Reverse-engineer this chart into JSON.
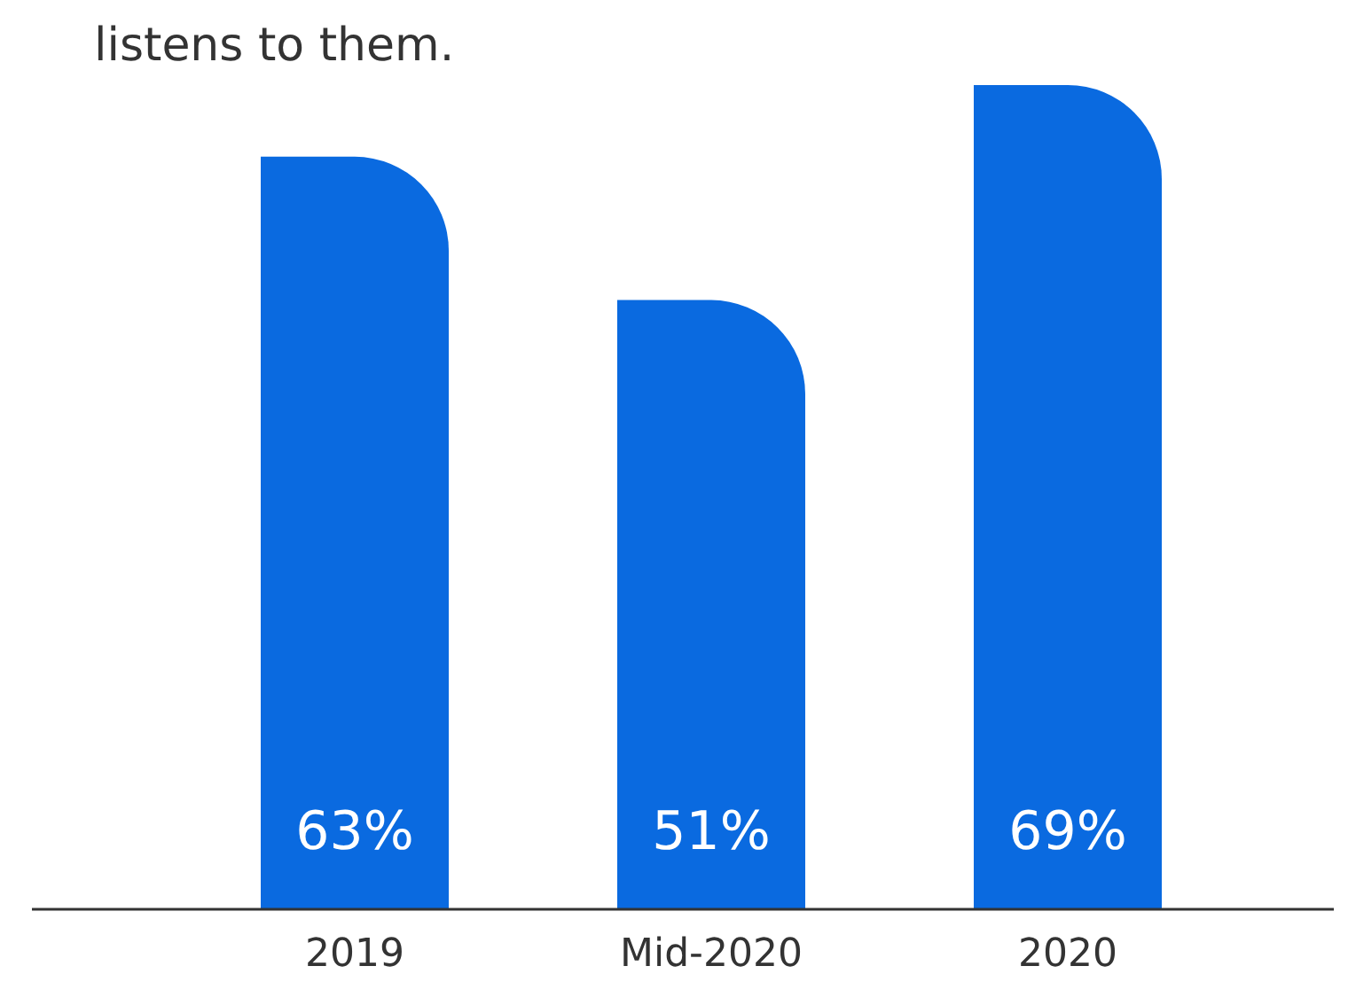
{
  "chart_data": {
    "type": "bar",
    "title": "listens to them.",
    "categories": [
      "2019",
      "Mid-2020",
      "2020"
    ],
    "values": [
      63,
      51,
      69
    ],
    "color": "#0a6ae0",
    "value_labels": [
      "63%",
      "51%",
      "69%"
    ]
  }
}
